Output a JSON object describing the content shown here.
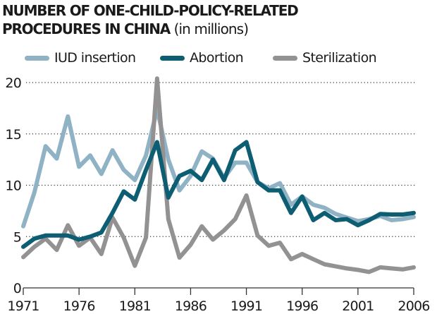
{
  "title": {
    "line1": "NUMBER OF ONE-CHILD-POLICY-RELATED",
    "line2_bold": "PROCEDURES IN CHINA",
    "line2_sub": "(in millions)"
  },
  "legend": [
    {
      "label": "IUD insertion",
      "color": "#8fb3c4"
    },
    {
      "label": "Abortion",
      "color": "#0e5e73"
    },
    {
      "label": "Sterilization",
      "color": "#939192"
    }
  ],
  "chart_data": {
    "type": "line",
    "title": "NUMBER OF ONE-CHILD-POLICY-RELATED PROCEDURES IN CHINA (in millions)",
    "xlabel": "",
    "ylabel": "",
    "x": [
      1971,
      1972,
      1973,
      1974,
      1975,
      1976,
      1977,
      1978,
      1979,
      1980,
      1981,
      1982,
      1983,
      1984,
      1985,
      1986,
      1987,
      1988,
      1989,
      1990,
      1991,
      1992,
      1993,
      1994,
      1995,
      1996,
      1997,
      1998,
      1999,
      2000,
      2001,
      2002,
      2003,
      2004,
      2005,
      2006
    ],
    "x_ticks": [
      "1971",
      "1976",
      "1981",
      "1986",
      "1991",
      "1996",
      "2001",
      "2006"
    ],
    "x_tick_values": [
      1971,
      1976,
      1981,
      1986,
      1991,
      1996,
      2001,
      2006
    ],
    "y_ticks": [
      "0",
      "5",
      "10",
      "15",
      "20"
    ],
    "y_tick_values": [
      0,
      5,
      10,
      15,
      20
    ],
    "xlim": [
      1971,
      2006
    ],
    "ylim": [
      0,
      20
    ],
    "grid": "horizontal-dotted",
    "legend_position": "top",
    "series": [
      {
        "name": "IUD insertion",
        "color": "#8fb3c4",
        "values": [
          6.0,
          9.3,
          13.8,
          12.6,
          16.7,
          11.8,
          12.9,
          11.1,
          13.4,
          11.5,
          10.5,
          12.9,
          17.4,
          12.5,
          9.5,
          10.9,
          13.3,
          12.6,
          10.7,
          12.2,
          12.2,
          10.3,
          9.7,
          10.2,
          8.1,
          8.9,
          8.1,
          7.8,
          7.2,
          6.85,
          6.5,
          6.7,
          7.0,
          6.6,
          6.7,
          6.9
        ]
      },
      {
        "name": "Abortion",
        "color": "#0e5e73",
        "values": [
          4.0,
          4.8,
          5.1,
          5.1,
          5.1,
          4.7,
          5.0,
          5.4,
          7.3,
          9.4,
          8.6,
          11.5,
          14.2,
          8.8,
          10.9,
          11.4,
          10.5,
          12.5,
          10.5,
          13.4,
          14.2,
          10.3,
          9.5,
          9.5,
          7.3,
          8.9,
          6.6,
          7.3,
          6.6,
          6.7,
          6.1,
          6.6,
          7.2,
          7.15,
          7.15,
          7.3
        ]
      },
      {
        "name": "Sterilization",
        "color": "#939192",
        "values": [
          3.0,
          4.0,
          4.8,
          3.7,
          6.1,
          4.1,
          4.9,
          3.3,
          6.85,
          4.9,
          2.15,
          4.9,
          20.4,
          6.7,
          2.95,
          4.2,
          6.0,
          4.7,
          5.6,
          6.7,
          9.0,
          5.1,
          4.1,
          4.4,
          2.8,
          3.3,
          2.8,
          2.3,
          2.1,
          1.9,
          1.75,
          1.55,
          2.0,
          1.9,
          1.8,
          2.0
        ]
      }
    ]
  }
}
